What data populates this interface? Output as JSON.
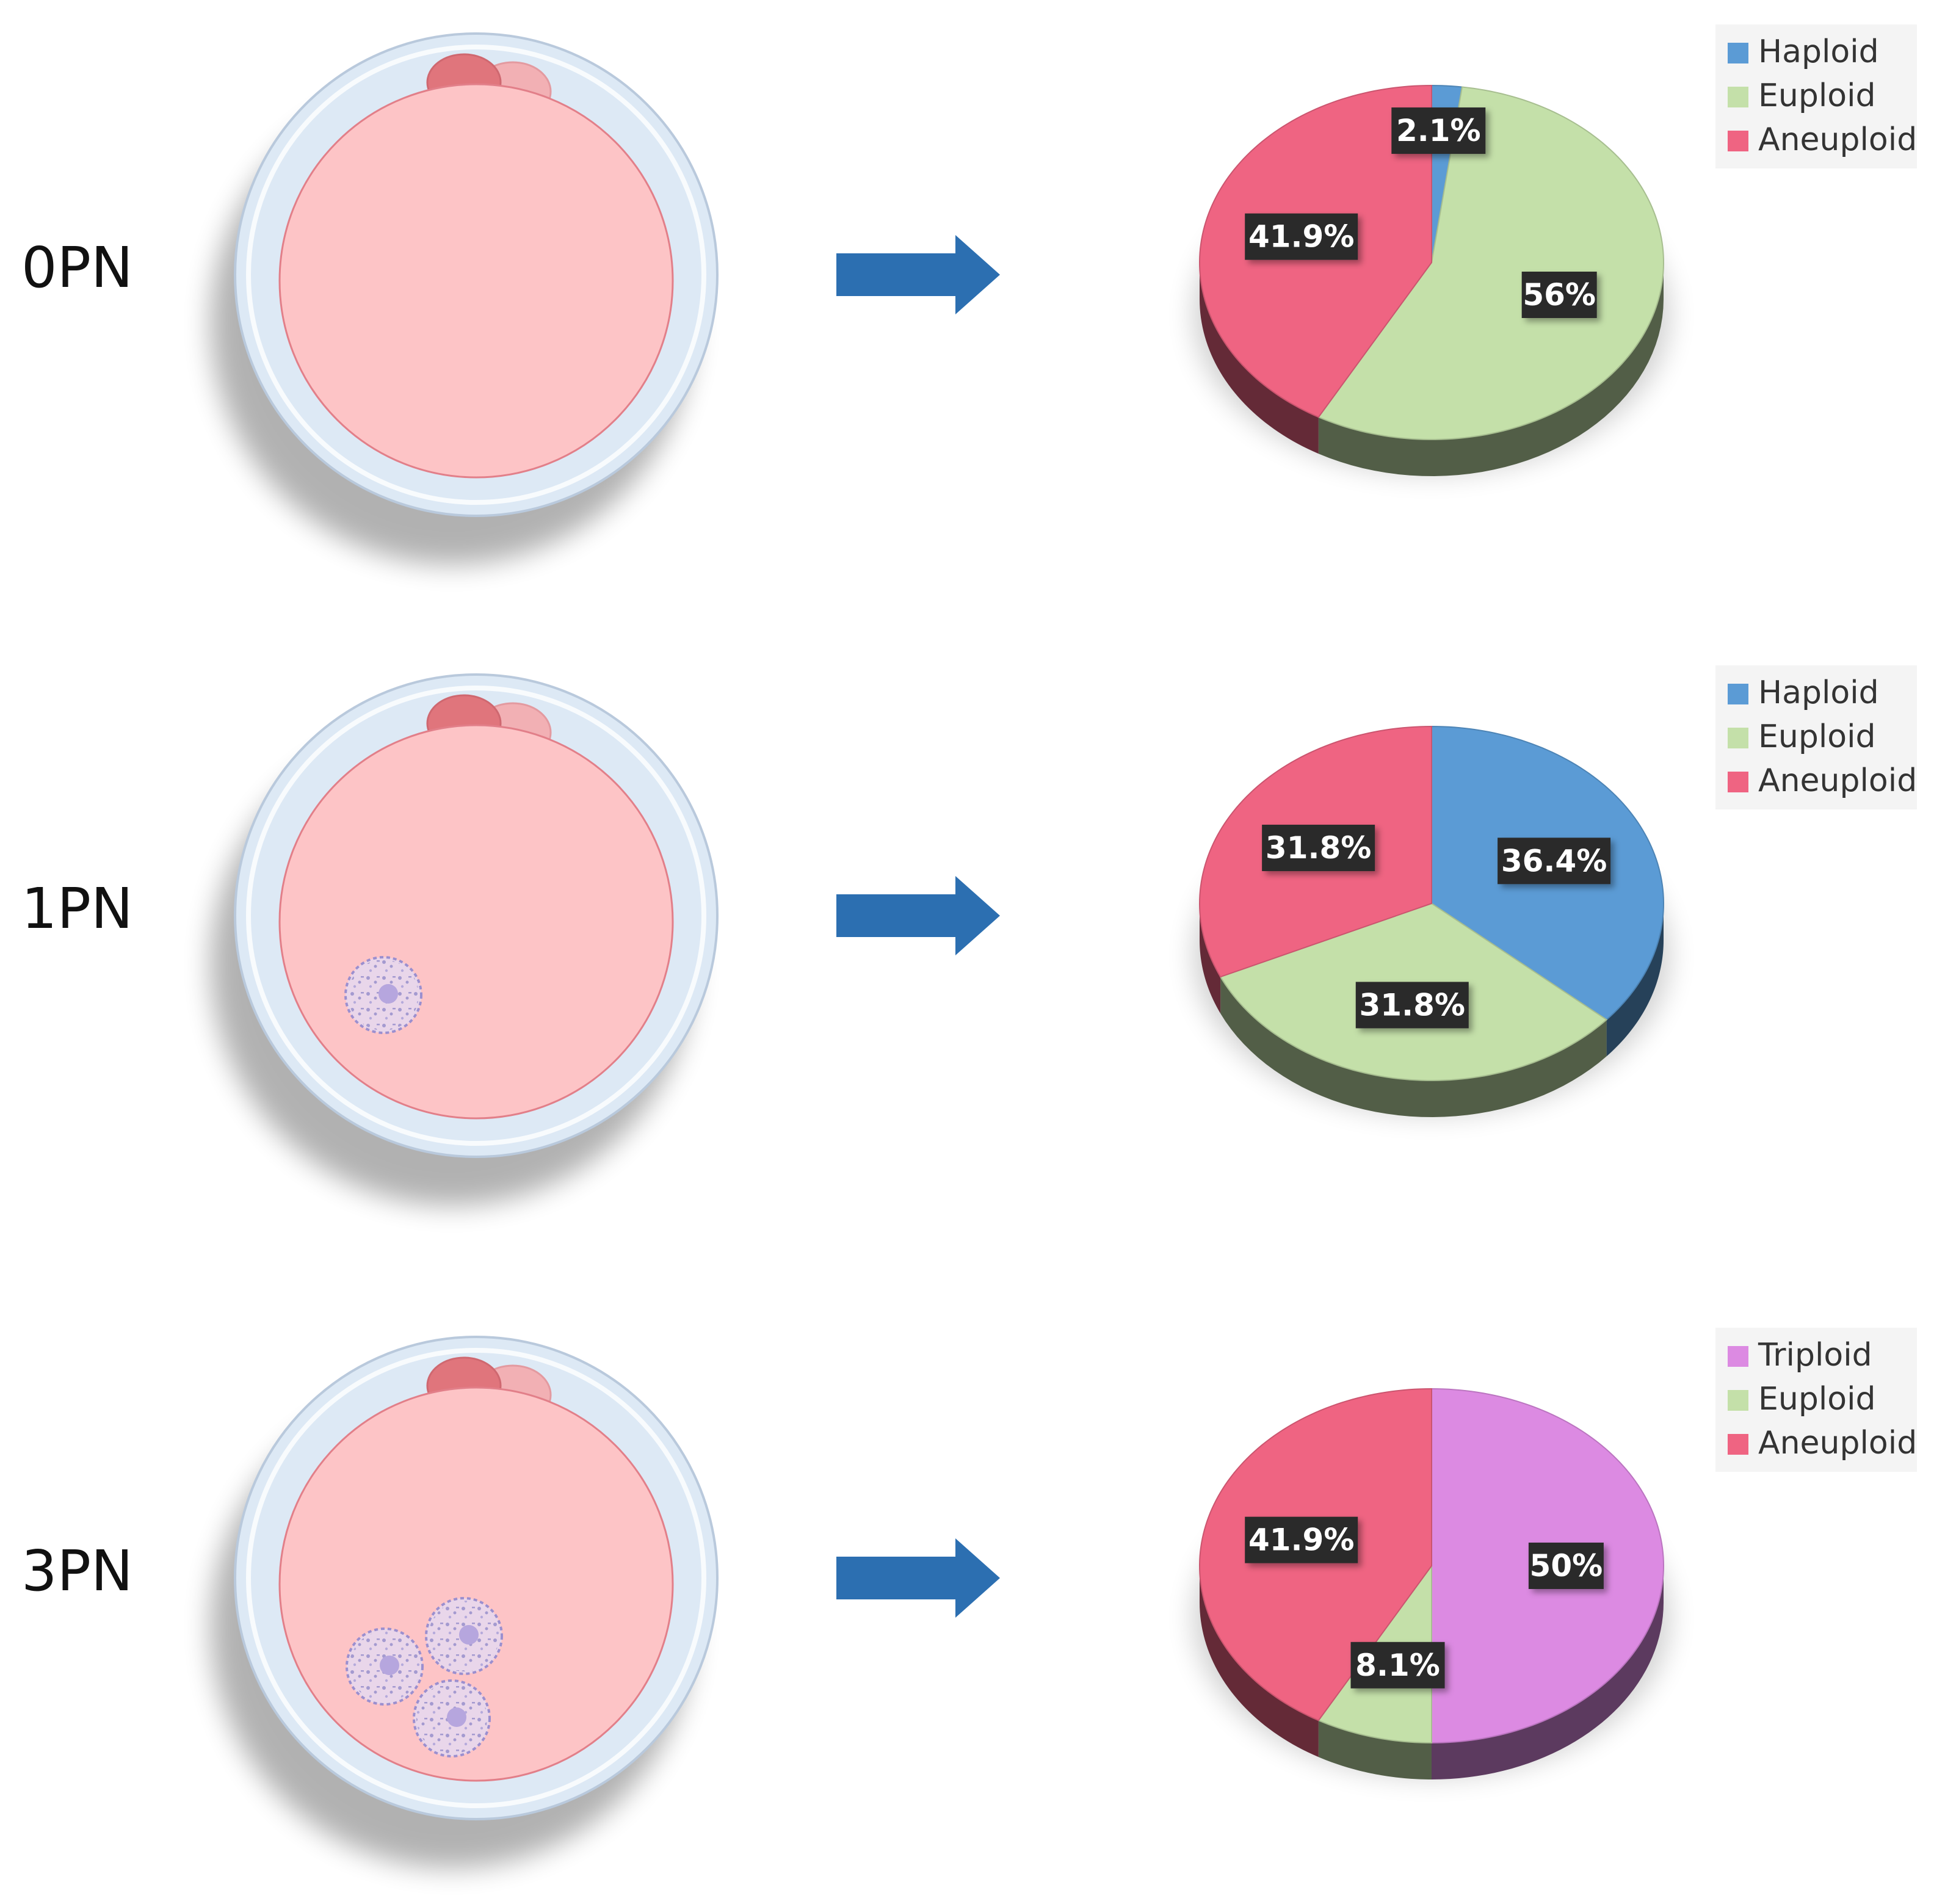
{
  "colors": {
    "haploid": "#5b9bd5",
    "euploid": "#c4e0a9",
    "aneuploid": "#ef6482",
    "triploid": "#dc8ae2",
    "arrow": "#2c6fb1",
    "zona": "#dde9f5",
    "ooplasm": "#fdc4c6",
    "polar_body_dark": "#e0757c",
    "polar_body_light": "#f2b0b4",
    "pronucleus": "#e9d6ea",
    "label_box": "#2c2c2c"
  },
  "chart_data": [
    {
      "type": "pie",
      "stage_label": "0PN",
      "pronuclei": 0,
      "legend_position": "top-right",
      "legend": [
        "Haploid",
        "Euploid",
        "Aneuploid"
      ],
      "slices": [
        {
          "name": "Haploid",
          "value": 2.1,
          "label": "2.1%",
          "color_key": "haploid"
        },
        {
          "name": "Euploid",
          "value": 56,
          "label": "56%",
          "color_key": "euploid"
        },
        {
          "name": "Aneuploid",
          "value": 41.9,
          "label": "41.9%",
          "color_key": "aneuploid"
        }
      ]
    },
    {
      "type": "pie",
      "stage_label": "1PN",
      "pronuclei": 1,
      "legend_position": "top-right",
      "legend": [
        "Haploid",
        "Euploid",
        "Aneuploid"
      ],
      "slices": [
        {
          "name": "Haploid",
          "value": 36.4,
          "label": "36.4%",
          "color_key": "haploid"
        },
        {
          "name": "Euploid",
          "value": 31.8,
          "label": "31.8%",
          "color_key": "euploid"
        },
        {
          "name": "Aneuploid",
          "value": 31.8,
          "label": "31.8%",
          "color_key": "aneuploid"
        }
      ]
    },
    {
      "type": "pie",
      "stage_label": "3PN",
      "pronuclei": 3,
      "legend_position": "top-right",
      "legend": [
        "Triploid",
        "Euploid",
        "Aneuploid"
      ],
      "slices": [
        {
          "name": "Triploid",
          "value": 50,
          "label": "50%",
          "color_key": "triploid"
        },
        {
          "name": "Euploid",
          "value": 8.1,
          "label": "8.1%",
          "color_key": "euploid"
        },
        {
          "name": "Aneuploid",
          "value": 41.9,
          "label": "41.9%",
          "color_key": "aneuploid"
        }
      ]
    }
  ]
}
